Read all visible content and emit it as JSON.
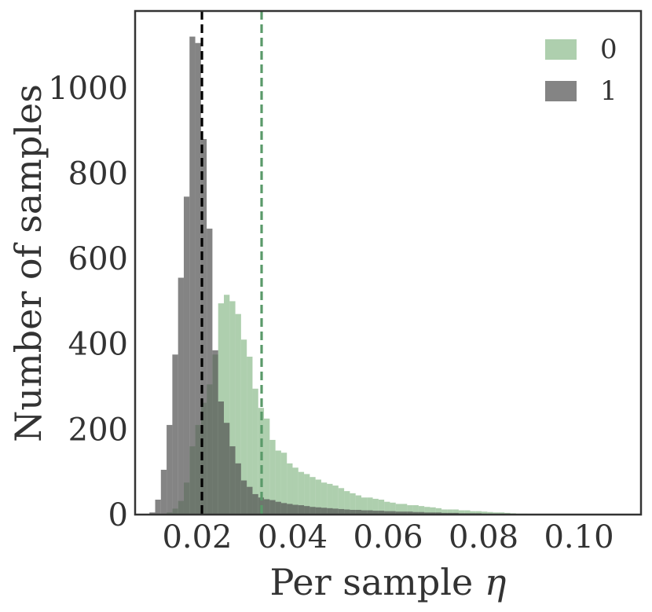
{
  "chart_data": {
    "type": "histogram",
    "xlabel": "Per sample",
    "xlabel_symbol": "η",
    "ylabel": "Number of samples",
    "xlim": [
      0.007,
      0.113
    ],
    "ylim": [
      0,
      1180
    ],
    "bin_width": 0.0012,
    "x_ticks": [
      0.02,
      0.04,
      0.06,
      0.08,
      0.1
    ],
    "x_tick_labels": [
      "0.02",
      "0.04",
      "0.06",
      "0.08",
      "0.10"
    ],
    "y_ticks": [
      0,
      200,
      400,
      600,
      800,
      1000
    ],
    "y_tick_labels": [
      "0",
      "200",
      "400",
      "600",
      "800",
      "1000"
    ],
    "grid": false,
    "legend_position": "top-right",
    "series": [
      {
        "name": "0",
        "color": "#8fbc8f",
        "opacity": 0.72,
        "bin_start": 0.0124,
        "values": [
          0,
          5,
          14,
          32,
          75,
          160,
          210,
          262,
          305,
          375,
          495,
          515,
          500,
          470,
          410,
          370,
          295,
          250,
          225,
          175,
          150,
          145,
          120,
          110,
          100,
          95,
          88,
          82,
          75,
          72,
          68,
          62,
          55,
          50,
          45,
          40,
          40,
          37,
          35,
          30,
          28,
          25,
          25,
          22,
          22,
          20,
          18,
          17,
          15,
          12,
          12,
          12,
          10,
          10,
          8,
          8,
          7,
          6,
          5,
          5,
          4,
          3,
          2,
          2,
          1
        ]
      },
      {
        "name": "1",
        "color": "#555555",
        "opacity": 0.72,
        "bin_start": 0.01,
        "values": [
          5,
          35,
          105,
          210,
          375,
          555,
          745,
          1120,
          1105,
          880,
          670,
          385,
          265,
          215,
          160,
          120,
          80,
          65,
          48,
          40,
          36,
          34,
          30,
          27,
          25,
          23,
          22,
          20,
          18,
          17,
          16,
          15,
          14,
          13,
          12,
          11,
          11,
          10,
          10,
          9,
          9,
          8,
          8,
          7,
          7,
          7,
          6,
          6,
          5,
          5,
          5,
          4,
          4,
          4,
          3,
          3,
          3,
          3,
          2,
          2,
          2,
          2,
          2,
          1,
          1,
          1
        ]
      }
    ],
    "reference_lines": [
      {
        "x": 0.021,
        "color": "#000000",
        "style": "dashed"
      },
      {
        "x": 0.0335,
        "color": "#5a9a6a",
        "style": "dashed"
      }
    ]
  }
}
